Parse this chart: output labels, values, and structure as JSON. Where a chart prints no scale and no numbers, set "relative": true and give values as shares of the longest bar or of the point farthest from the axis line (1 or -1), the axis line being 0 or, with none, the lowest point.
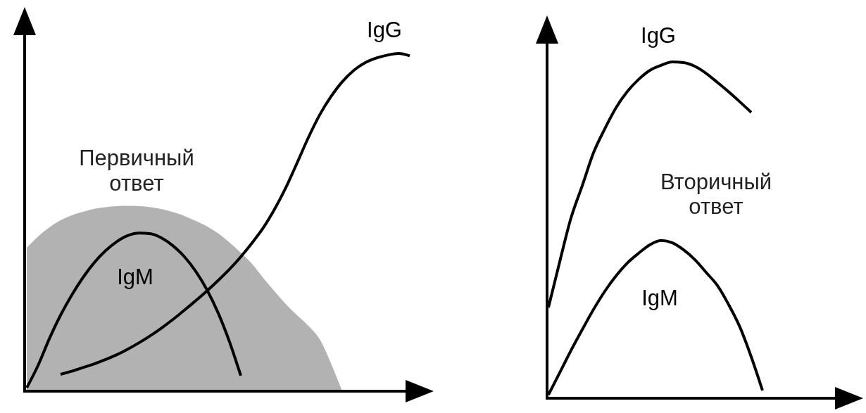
{
  "chart_data": [
    {
      "type": "line",
      "relative": true,
      "categories": [
        null,
        null,
        null,
        null,
        null,
        null,
        null,
        null,
        null,
        null,
        null,
        null,
        null,
        null,
        null,
        null,
        null,
        null,
        null,
        null,
        null,
        null,
        null,
        null,
        null,
        null,
        null,
        null,
        null,
        null,
        null,
        null,
        null,
        null,
        null
      ],
      "series": [
        {
          "type": "area",
          "color": "#b2b2b2",
          "values": [
            0.425,
            0.458,
            0.485,
            0.506,
            0.521,
            0.531,
            0.54,
            0.545,
            0.548,
            0.549,
            0.548,
            0.545,
            0.539,
            0.53,
            0.519,
            0.504,
            0.488,
            0.467,
            0.44,
            0.41,
            0.377,
            0.335,
            0.296,
            0.258,
            0.225,
            0.194,
            0.154,
            0.083,
            0,
            null,
            null,
            null,
            null,
            null,
            null
          ]
        },
        {
          "name": "IgM",
          "color": "#000000",
          "values": [
            0.01,
            0.076,
            0.155,
            0.225,
            0.285,
            0.337,
            0.381,
            0.416,
            0.443,
            0.461,
            0.468,
            0.466,
            0.453,
            0.43,
            0.398,
            0.355,
            0.3,
            0.231,
            0.146,
            0.046,
            null,
            null,
            null,
            null,
            null,
            null,
            null,
            null,
            null,
            null,
            null,
            null,
            null,
            null,
            null
          ]
        },
        {
          "name": "IgG",
          "color": "#000000",
          "values": [
            null,
            null,
            null,
            0.05,
            0.059,
            0.07,
            0.081,
            0.094,
            0.108,
            0.125,
            0.144,
            0.165,
            0.188,
            0.213,
            0.24,
            0.268,
            0.297,
            0.328,
            0.361,
            0.398,
            0.439,
            0.484,
            0.539,
            0.603,
            0.676,
            0.751,
            0.818,
            0.872,
            0.916,
            0.949,
            0.972,
            0.986,
            0.995,
            1,
            0.993
          ]
        }
      ],
      "annotations": [
        "Первичный ответ"
      ]
    },
    {
      "type": "line",
      "relative": true,
      "categories": [
        null,
        null,
        null,
        null,
        null,
        null,
        null,
        null,
        null,
        null,
        null,
        null,
        null,
        null,
        null,
        null,
        null,
        null,
        null,
        null,
        null,
        null,
        null,
        null,
        null,
        null,
        null
      ],
      "series": [
        {
          "name": "IgG",
          "color": "#000000",
          "values": [
            0.27,
            0.406,
            0.536,
            0.632,
            0.73,
            0.801,
            0.864,
            0.912,
            0.948,
            0.975,
            0.99,
            1,
            0.998,
            0.987,
            0.966,
            0.939,
            0.911,
            0.881,
            0.85,
            null,
            null,
            null,
            null,
            null,
            null,
            null,
            null
          ]
        },
        {
          "name": "IgM",
          "color": "#000000",
          "values": [
            0.01,
            0.076,
            0.142,
            0.204,
            0.264,
            0.318,
            0.364,
            0.402,
            0.431,
            0.456,
            0.469,
            0.462,
            0.441,
            0.412,
            0.374,
            0.335,
            0.278,
            0.211,
            0.123,
            0.023,
            null,
            null,
            null,
            null,
            null,
            null,
            null
          ]
        }
      ],
      "annotations": [
        "Вторичный ответ"
      ]
    }
  ]
}
